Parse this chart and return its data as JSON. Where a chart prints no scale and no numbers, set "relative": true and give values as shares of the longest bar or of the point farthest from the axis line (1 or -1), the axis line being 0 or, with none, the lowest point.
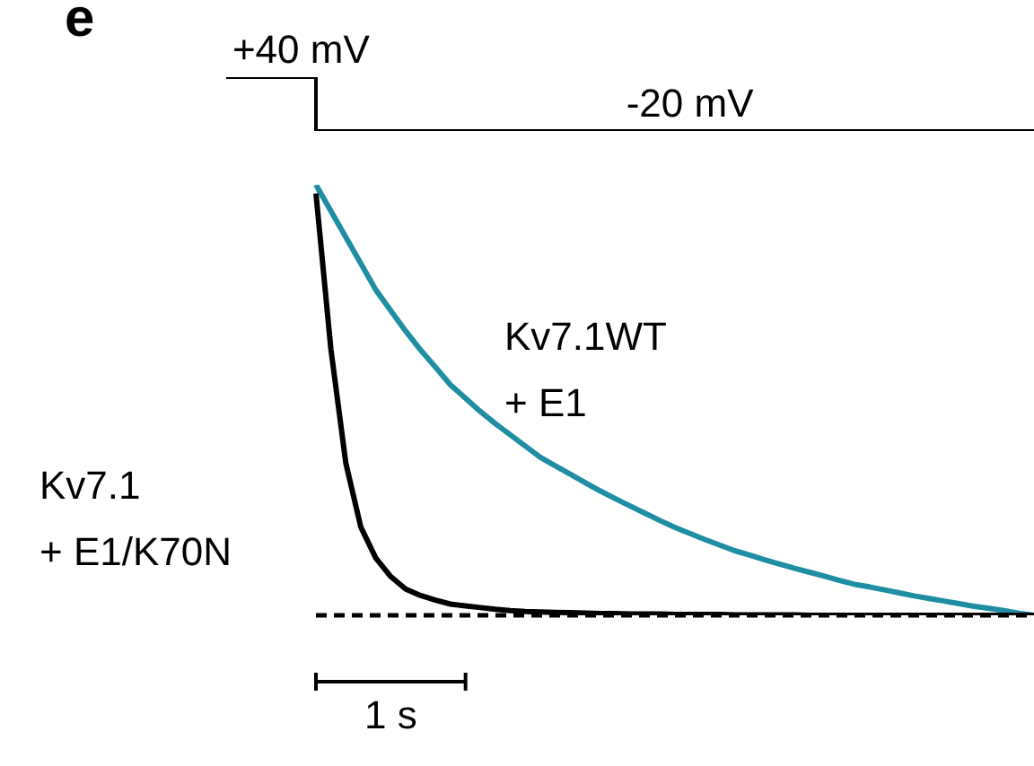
{
  "chart_data": [
    {
      "type": "step",
      "title": "e",
      "categories": [
        null,
        null,
        null,
        null,
        null,
        null,
        null,
        null,
        null,
        null,
        null,
        null,
        null,
        null,
        null,
        null,
        null,
        null,
        null,
        null,
        null,
        null,
        null,
        null,
        null,
        null,
        null,
        null,
        null,
        null,
        null,
        null,
        null,
        null,
        null,
        null,
        null,
        null,
        null,
        null,
        null,
        null,
        null,
        null,
        null,
        null,
        null,
        null,
        null,
        null,
        null,
        null,
        null,
        null,
        null
      ],
      "values": [
        40,
        40,
        40,
        40,
        40,
        40,
        -20,
        -20,
        -20,
        -20,
        -20,
        -20,
        -20,
        -20,
        -20,
        -20,
        -20,
        -20,
        -20,
        -20,
        -20,
        -20,
        -20,
        -20,
        -20,
        -20,
        -20,
        -20,
        -20,
        -20,
        -20,
        -20,
        -20,
        -20,
        -20,
        -20,
        -20,
        -20,
        -20,
        -20,
        -20,
        -20,
        -20,
        -20,
        -20,
        -20,
        -20,
        -20,
        -20,
        -20,
        -20,
        -20,
        -20,
        -20,
        -20
      ],
      "value_labels": [
        null,
        null,
        null,
        null,
        null,
        "+40 mV",
        null,
        null,
        null,
        null,
        null,
        null,
        null,
        null,
        null,
        null,
        null,
        null,
        null,
        null,
        null,
        null,
        null,
        null,
        null,
        null,
        null,
        null,
        null,
        null,
        null,
        "-20 mV",
        null,
        null,
        null,
        null,
        null,
        null,
        null,
        null,
        null,
        null,
        null,
        null,
        null,
        null,
        null,
        null,
        null,
        null,
        null,
        null,
        null,
        null,
        null
      ],
      "color": "#000000"
    },
    {
      "type": "line",
      "relative": true,
      "categories": [
        null,
        null,
        null,
        null,
        null,
        null,
        null,
        null,
        null,
        null,
        null,
        null,
        null,
        null,
        null,
        null,
        null,
        null,
        null,
        null,
        null,
        null,
        null,
        null,
        null,
        null,
        null,
        null,
        null,
        null,
        null,
        null,
        null,
        null,
        null,
        null,
        null,
        null,
        null,
        null,
        null,
        null,
        null,
        null,
        null,
        null,
        null,
        null,
        null
      ],
      "annotations": [
        "1 s"
      ],
      "ref_lines": [
        {
          "axis": "y",
          "value": 0,
          "color": "#000000",
          "line_style": "dashed"
        }
      ],
      "series": [
        {
          "name": "Kv7.1WT + E1",
          "color": "#1f8ea3",
          "values": [
            1,
            0.939,
            0.878,
            0.817,
            0.756,
            0.708,
            0.66,
            0.616,
            0.576,
            0.535,
            0.504,
            0.473,
            0.445,
            0.419,
            0.393,
            0.367,
            0.347,
            0.328,
            0.308,
            0.289,
            0.271,
            0.254,
            0.237,
            0.22,
            0.204,
            0.19,
            0.176,
            0.163,
            0.15,
            0.14,
            0.129,
            0.119,
            0.109,
            0.1,
            0.091,
            0.081,
            0.072,
            0.066,
            0.059,
            0.052,
            0.045,
            0.039,
            0.033,
            0.027,
            0.021,
            0.016,
            0.011,
            0.005,
            0
          ]
        },
        {
          "name": "Kv7.1 + E1/K70N",
          "color": "#000000",
          "values": [
            0.98,
            0.618,
            0.353,
            0.205,
            0.133,
            0.09,
            0.061,
            0.046,
            0.035,
            0.026,
            0.022,
            0.018,
            0.014,
            0.011,
            0.009,
            0.008,
            0.007,
            0.006,
            0.005,
            0.004,
            0.004,
            0.003,
            0.003,
            0.003,
            0.002,
            0.002,
            0.002,
            0.002,
            0.001,
            0.001,
            0.001,
            0.001,
            0.001,
            0,
            0,
            0,
            0,
            0,
            0,
            0,
            0,
            0,
            0,
            0,
            0,
            0,
            0,
            0,
            0
          ]
        }
      ]
    }
  ]
}
